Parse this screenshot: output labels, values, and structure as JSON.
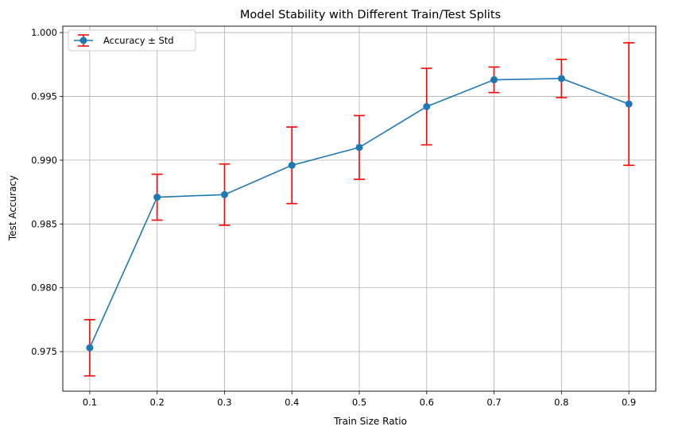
{
  "chart_data": {
    "type": "line",
    "title": "Model Stability with Different Train/Test Splits",
    "xlabel": "Train Size Ratio",
    "ylabel": "Test Accuracy",
    "x": [
      0.1,
      0.2,
      0.3,
      0.4,
      0.5,
      0.6,
      0.7,
      0.8,
      0.9
    ],
    "x_tick_labels": [
      "0.1",
      "0.2",
      "0.3",
      "0.4",
      "0.5",
      "0.6",
      "0.7",
      "0.8",
      "0.9"
    ],
    "y_ticks": [
      0.975,
      0.98,
      0.985,
      0.99,
      0.995,
      1.0
    ],
    "y_tick_labels": [
      "0.975",
      "0.980",
      "0.985",
      "0.990",
      "0.995",
      "1.000"
    ],
    "xlim": [
      0.06,
      0.94
    ],
    "ylim": [
      0.9719,
      1.0005
    ],
    "grid": true,
    "legend_position": "top-left",
    "series": [
      {
        "name": "Accuracy ± Std",
        "values": [
          0.9753,
          0.9871,
          0.9873,
          0.9896,
          0.991,
          0.9942,
          0.9963,
          0.9964,
          0.9944
        ],
        "error": [
          0.0022,
          0.0018,
          0.0024,
          0.003,
          0.0025,
          0.003,
          0.001,
          0.0015,
          0.0048
        ],
        "color": "#1f77b4",
        "error_color": "#ff0000"
      }
    ]
  }
}
